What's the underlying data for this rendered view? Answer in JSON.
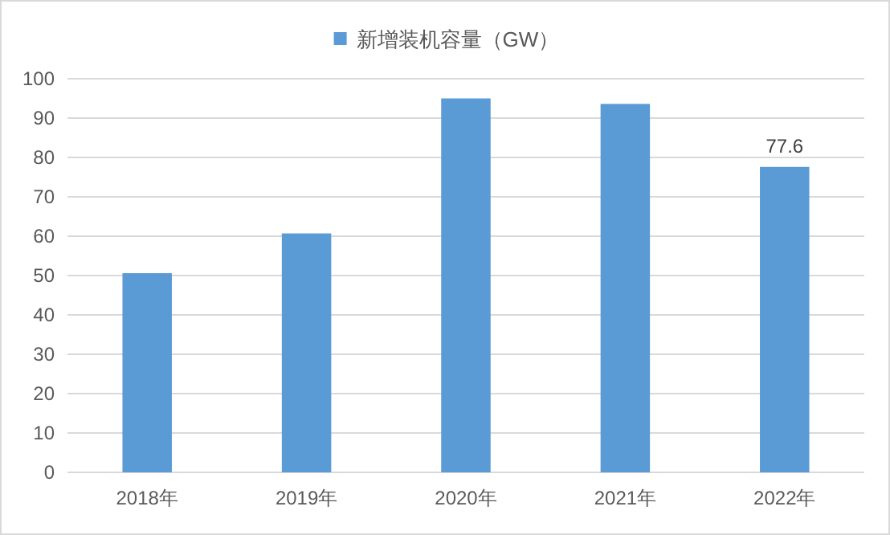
{
  "chart_data": {
    "type": "bar",
    "categories": [
      "2018年",
      "2019年",
      "2020年",
      "2021年",
      "2022年"
    ],
    "series": [
      {
        "name": "新增装机容量（GW）",
        "color": "#5b9bd5",
        "values": [
          50.6,
          60.7,
          95.0,
          93.6,
          77.6
        ],
        "value_labels": [
          null,
          null,
          null,
          null,
          "77.6"
        ]
      }
    ],
    "ylim": [
      0,
      100
    ],
    "yticks": [
      0,
      10,
      20,
      30,
      40,
      50,
      60,
      70,
      80,
      90,
      100
    ],
    "grid": "y",
    "legend": "top"
  }
}
